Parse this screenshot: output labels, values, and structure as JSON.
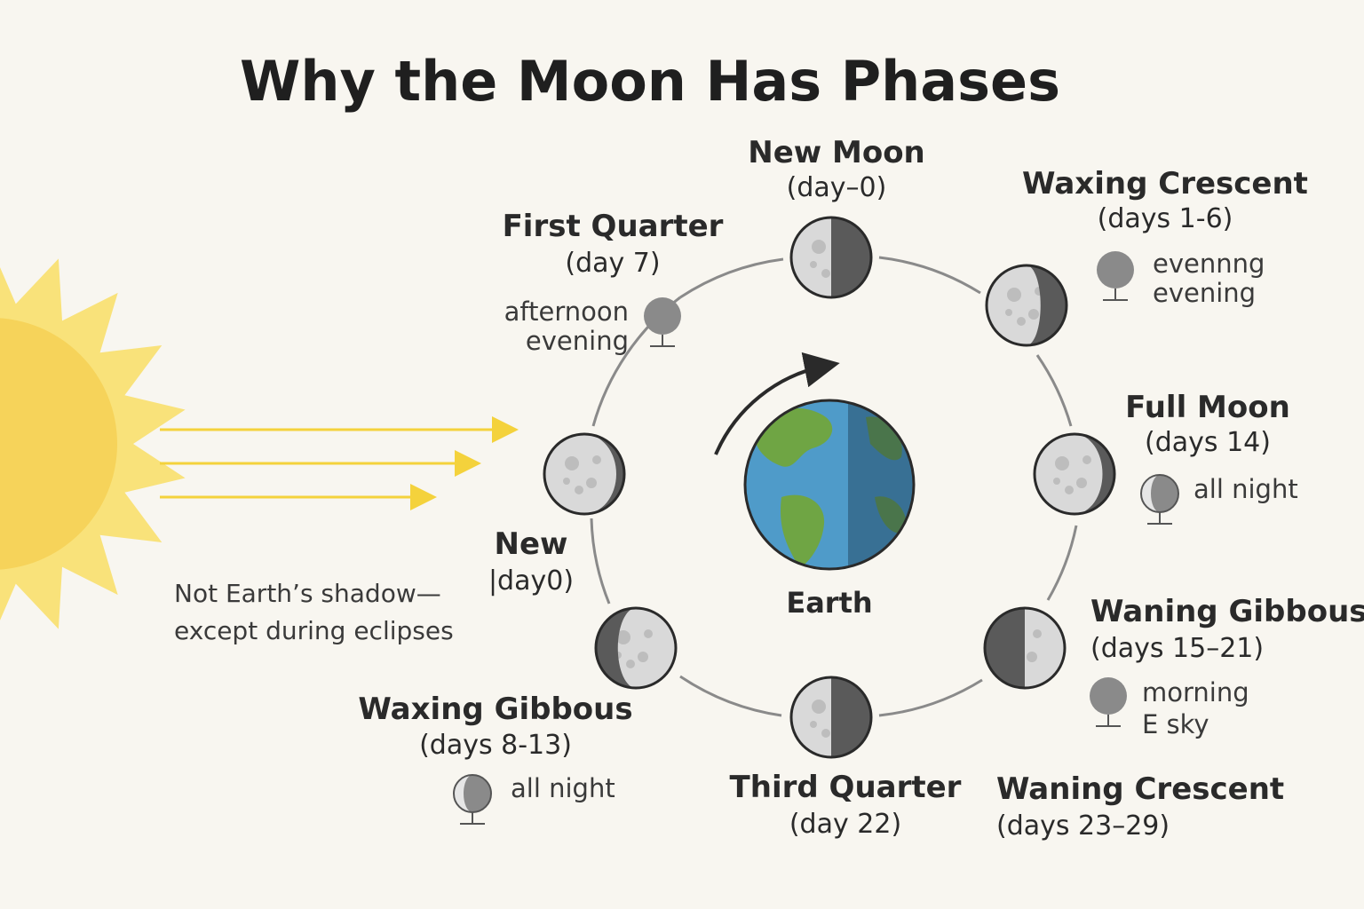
{
  "title": "Why the Moon Has Phases",
  "earth_label": "Earth",
  "note": [
    "Not Earth’s shadow—",
    "except during eclipses"
  ],
  "phases": [
    {
      "id": "new-moon-top",
      "name": "New Moon",
      "days": "(day–0)",
      "sky": []
    },
    {
      "id": "waxing-crescent",
      "name": "Waxing Crescent",
      "days": "(days 1-6)",
      "sky": [
        "evennng",
        "evening"
      ]
    },
    {
      "id": "full-moon",
      "name": "Full Moon",
      "days": "(days 14)",
      "sky": [
        "all night"
      ]
    },
    {
      "id": "waning-gibbous",
      "name": "Waning Gibbous",
      "days": "(days 15–21)",
      "sky": [
        "morning",
        "E sky"
      ]
    },
    {
      "id": "waning-crescent",
      "name": "Waning Crescent",
      "days": "(days 23–29)",
      "sky": []
    },
    {
      "id": "third-quarter",
      "name": "Third Quarter",
      "days": "(day 22)",
      "sky": []
    },
    {
      "id": "waxing-gibbous",
      "name": "Waxing Gibbous",
      "days": "(days 8-13)",
      "sky": [
        "all night"
      ]
    },
    {
      "id": "new-left",
      "name": "New",
      "days": "|day0)",
      "sky": []
    },
    {
      "id": "first-quarter",
      "name": "First Quarter",
      "days": "(day 7)",
      "sky": [
        "afternoon",
        "evening"
      ]
    }
  ],
  "colors": {
    "background": "#f8f6f0",
    "sun": "#f6d35a",
    "sun_rays": "#f9e27a",
    "light_beams": "#f4d23c",
    "orbit": "#8a8a8a",
    "ocean": "#4f9bc9",
    "land": "#6fa544",
    "moon_lit": "#d9d9d9",
    "moon_dark": "#5a5a5a"
  },
  "icons": [
    "sun-icon",
    "earth-icon",
    "moon-icon",
    "sky-moon-icon",
    "rotation-arrow-icon"
  ]
}
